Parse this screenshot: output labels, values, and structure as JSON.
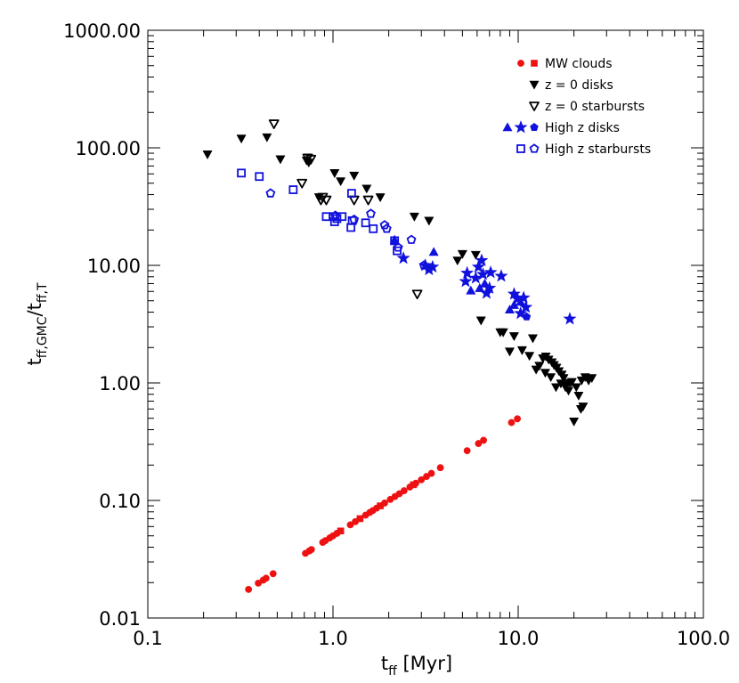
{
  "chart_data": {
    "type": "scatter",
    "xscale": "log",
    "yscale": "log",
    "xlim": [
      0.1,
      100
    ],
    "ylim": [
      0.01,
      1000
    ],
    "xlabel": {
      "base": "t",
      "sub": "ff",
      "rest": " [Myr]"
    },
    "ylabel": {
      "num_base": "t",
      "num_sub": "ff,GMC",
      "sep": "/",
      "den_base": "t",
      "den_sub": "ff,T"
    },
    "xticks": [
      {
        "v": 0.1,
        "label": "0.1"
      },
      {
        "v": 1,
        "label": "1.0"
      },
      {
        "v": 10,
        "label": "10.0"
      },
      {
        "v": 100,
        "label": "100.0"
      }
    ],
    "yticks": [
      {
        "v": 0.01,
        "label": "0.01"
      },
      {
        "v": 0.1,
        "label": "0.10"
      },
      {
        "v": 1,
        "label": "1.00"
      },
      {
        "v": 10,
        "label": "10.00"
      },
      {
        "v": 100,
        "label": "100.00"
      },
      {
        "v": 1000,
        "label": "1000.00"
      }
    ],
    "legend_position": "top-right",
    "legend": [
      {
        "label": "MW clouds",
        "symbols": [
          {
            "marker": "circle",
            "fill": true
          },
          {
            "marker": "square",
            "fill": true
          }
        ],
        "color": "#ee1111"
      },
      {
        "label": "z = 0 disks",
        "symbols": [
          {
            "marker": "tri-down",
            "fill": true
          }
        ],
        "color": "#000000"
      },
      {
        "label": "z = 0 starbursts",
        "symbols": [
          {
            "marker": "tri-down",
            "fill": false
          }
        ],
        "color": "#000000"
      },
      {
        "label": "High z disks",
        "symbols": [
          {
            "marker": "tri-up",
            "fill": true
          },
          {
            "marker": "star",
            "fill": true
          },
          {
            "marker": "pentagon",
            "fill": true
          }
        ],
        "color": "#1111dd"
      },
      {
        "label": "High z starbursts",
        "symbols": [
          {
            "marker": "square",
            "fill": false
          },
          {
            "marker": "pentagon",
            "fill": false
          }
        ],
        "color": "#1111dd"
      }
    ],
    "series": [
      {
        "name": "MW clouds",
        "marker": "circle",
        "fill": true,
        "color": "#ee1111",
        "points": [
          [
            0.35,
            0.0175
          ],
          [
            0.395,
            0.0198
          ],
          [
            0.42,
            0.021
          ],
          [
            0.435,
            0.0218
          ],
          [
            0.475,
            0.0238
          ],
          [
            0.71,
            0.0355
          ],
          [
            0.745,
            0.0372
          ],
          [
            0.765,
            0.0382
          ],
          [
            0.88,
            0.044
          ],
          [
            0.91,
            0.0455
          ],
          [
            0.96,
            0.048
          ],
          [
            1.0,
            0.05
          ],
          [
            1.05,
            0.0525
          ],
          [
            1.24,
            0.062
          ],
          [
            1.32,
            0.066
          ],
          [
            1.5,
            0.075
          ],
          [
            1.58,
            0.079
          ],
          [
            1.64,
            0.082
          ],
          [
            1.72,
            0.086
          ],
          [
            1.9,
            0.095
          ],
          [
            2.04,
            0.102
          ],
          [
            2.16,
            0.108
          ],
          [
            2.28,
            0.114
          ],
          [
            2.42,
            0.121
          ],
          [
            2.6,
            0.13
          ],
          [
            2.8,
            0.14
          ],
          [
            3.0,
            0.15
          ],
          [
            3.2,
            0.16
          ],
          [
            3.4,
            0.17
          ],
          [
            3.8,
            0.19
          ],
          [
            5.3,
            0.265
          ],
          [
            6.1,
            0.305
          ],
          [
            6.5,
            0.325
          ],
          [
            9.2,
            0.46
          ],
          [
            9.9,
            0.495
          ]
        ]
      },
      {
        "name": "MW clouds",
        "marker": "square",
        "fill": true,
        "color": "#ee1111",
        "points": [
          [
            1.1,
            0.055
          ],
          [
            1.4,
            0.07
          ],
          [
            1.8,
            0.09
          ],
          [
            2.72,
            0.136
          ]
        ]
      },
      {
        "name": "z = 0 disks",
        "marker": "tri-down",
        "fill": true,
        "color": "#000000",
        "points": [
          [
            0.21,
            88
          ],
          [
            0.32,
            120
          ],
          [
            0.44,
            123
          ],
          [
            0.52,
            80
          ],
          [
            0.72,
            78
          ],
          [
            0.74,
            75
          ],
          [
            0.84,
            38
          ],
          [
            1.02,
            61
          ],
          [
            1.1,
            52
          ],
          [
            1.3,
            58
          ],
          [
            1.52,
            45
          ],
          [
            1.8,
            38
          ],
          [
            2.75,
            26
          ],
          [
            3.3,
            24
          ],
          [
            4.7,
            11
          ],
          [
            5.0,
            12.5
          ],
          [
            5.9,
            12.3
          ],
          [
            6.3,
            3.4
          ],
          [
            8.0,
            2.7
          ],
          [
            8.3,
            2.7
          ],
          [
            9.0,
            1.85
          ],
          [
            9.5,
            2.5
          ],
          [
            10.5,
            1.9
          ],
          [
            11.5,
            1.7
          ],
          [
            12.0,
            2.4
          ],
          [
            12.5,
            1.3
          ],
          [
            13.0,
            1.4
          ],
          [
            13.6,
            1.62
          ],
          [
            14.1,
            1.68
          ],
          [
            14.6,
            1.58
          ],
          [
            15.2,
            1.5
          ],
          [
            15.6,
            1.42
          ],
          [
            16.1,
            1.35
          ],
          [
            16.6,
            1.26
          ],
          [
            17.2,
            1.18
          ],
          [
            17.6,
            1.1
          ],
          [
            18.2,
            0.97
          ],
          [
            18.7,
            0.86
          ],
          [
            19.5,
            1.02
          ],
          [
            20.0,
            0.47
          ],
          [
            20.6,
            0.92
          ],
          [
            21.2,
            0.78
          ],
          [
            21.8,
            0.6
          ],
          [
            22.4,
            0.63
          ],
          [
            23.0,
            1.12
          ],
          [
            24.0,
            1.05
          ],
          [
            25.0,
            1.1
          ],
          [
            22.0,
            1.05
          ],
          [
            19.0,
            1.0
          ],
          [
            17.0,
            0.99
          ],
          [
            15.0,
            1.12
          ],
          [
            14.0,
            1.22
          ],
          [
            16.0,
            0.92
          ],
          [
            18.0,
            0.92
          ]
        ]
      },
      {
        "name": "z = 0 starbursts",
        "marker": "tri-down",
        "fill": false,
        "color": "#000000",
        "points": [
          [
            0.48,
            160
          ],
          [
            0.73,
            82
          ],
          [
            0.76,
            80
          ],
          [
            0.68,
            50
          ],
          [
            0.86,
            36
          ],
          [
            0.88,
            38
          ],
          [
            0.92,
            36
          ],
          [
            1.3,
            36
          ],
          [
            1.55,
            36
          ],
          [
            2.85,
            5.7
          ]
        ]
      },
      {
        "name": "High z disks",
        "marker": "tri-up",
        "fill": true,
        "color": "#1111dd",
        "points": [
          [
            2.15,
            16.5
          ],
          [
            3.5,
            13
          ],
          [
            5.55,
            6.1
          ],
          [
            6.2,
            6.4
          ],
          [
            6.6,
            7
          ],
          [
            9.0,
            4.2
          ],
          [
            9.5,
            4.6
          ],
          [
            10.3,
            4.9
          ]
        ]
      },
      {
        "name": "High z disks",
        "marker": "star",
        "fill": true,
        "color": "#1111dd",
        "points": [
          [
            2.4,
            11.5
          ],
          [
            3.15,
            10
          ],
          [
            3.3,
            9.2
          ],
          [
            3.45,
            9.7
          ],
          [
            5.3,
            8.6
          ],
          [
            5.2,
            7.3
          ],
          [
            5.9,
            7.8
          ],
          [
            6.1,
            9.7
          ],
          [
            6.35,
            11
          ],
          [
            6.45,
            8.4
          ],
          [
            6.75,
            5.8
          ],
          [
            7.0,
            6.4
          ],
          [
            7.1,
            8.7
          ],
          [
            8.1,
            8.1
          ],
          [
            9.5,
            5.7
          ],
          [
            9.9,
            5.2
          ],
          [
            10.3,
            3.9
          ],
          [
            10.7,
            5.3
          ],
          [
            11.0,
            4.4
          ],
          [
            19.0,
            3.5
          ]
        ]
      },
      {
        "name": "High z disks",
        "marker": "pentagon",
        "fill": true,
        "color": "#1111dd",
        "points": [
          [
            11.1,
            3.65
          ]
        ]
      },
      {
        "name": "High z starbursts",
        "marker": "square",
        "fill": false,
        "color": "#1111dd",
        "points": [
          [
            0.32,
            61
          ],
          [
            0.4,
            57
          ],
          [
            0.61,
            44
          ],
          [
            0.92,
            26
          ],
          [
            1.0,
            26
          ],
          [
            1.02,
            23.5
          ],
          [
            1.05,
            25
          ],
          [
            1.12,
            26
          ],
          [
            1.25,
            21
          ],
          [
            1.27,
            24
          ],
          [
            1.26,
            41
          ],
          [
            1.5,
            23
          ],
          [
            1.65,
            20.5
          ],
          [
            2.15,
            16.2
          ],
          [
            2.22,
            13.3
          ]
        ]
      },
      {
        "name": "High z starbursts",
        "marker": "pentagon",
        "fill": false,
        "color": "#1111dd",
        "points": [
          [
            0.46,
            41
          ],
          [
            1.03,
            26.5
          ],
          [
            1.3,
            24.5
          ],
          [
            1.6,
            27.5
          ],
          [
            1.9,
            22
          ],
          [
            1.95,
            20.5
          ],
          [
            2.25,
            14.2
          ],
          [
            2.65,
            16.5
          ],
          [
            3.1,
            10
          ],
          [
            3.3,
            9.5
          ]
        ]
      }
    ]
  }
}
